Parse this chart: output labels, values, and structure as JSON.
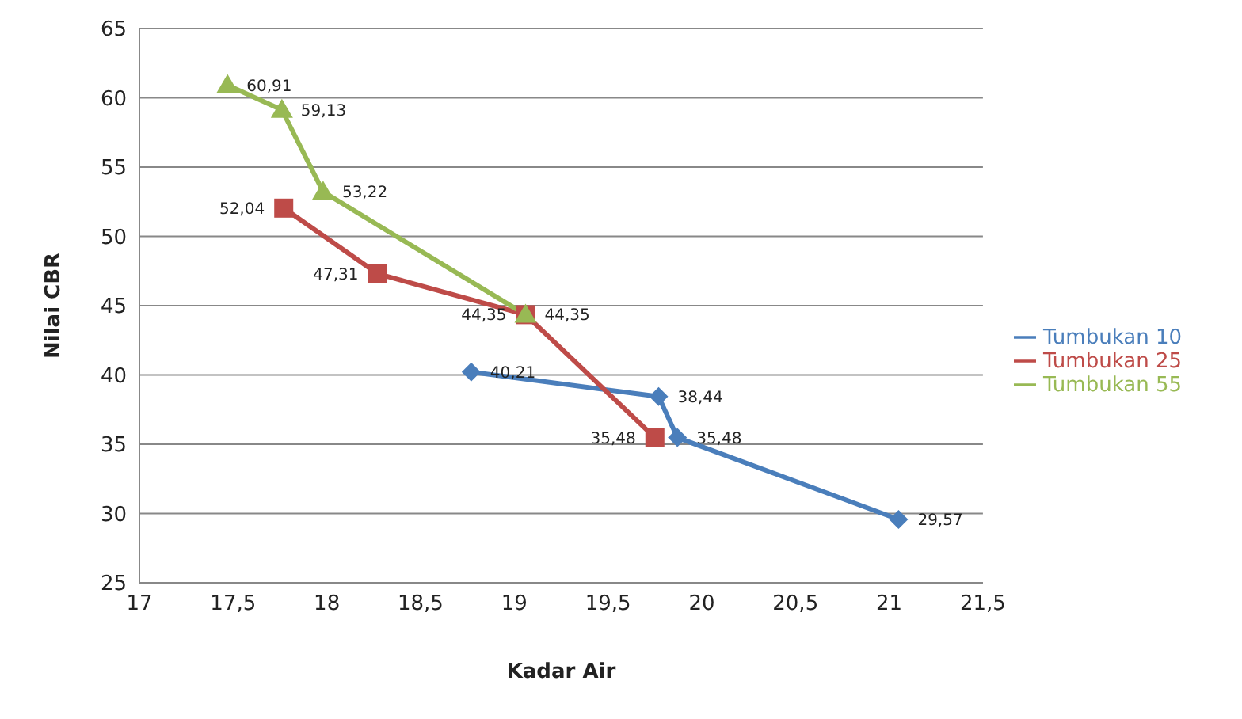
{
  "chart_data": {
    "type": "line",
    "xlabel": "Kadar Air",
    "ylabel": "Nilai CBR",
    "xlim": [
      17,
      21.5
    ],
    "xticks": [
      17,
      {
        "value": 17.5,
        "label": "17,5"
      },
      18,
      {
        "value": 18.5,
        "label": "18,5"
      },
      19,
      {
        "value": 19.5,
        "label": "19,5"
      },
      20,
      {
        "value": 20.5,
        "label": "20,5"
      },
      21,
      {
        "value": 21.5,
        "label": "21,5"
      }
    ],
    "ylim": [
      25,
      65
    ],
    "yticks": [
      25,
      30,
      35,
      40,
      45,
      50,
      55,
      60,
      65
    ],
    "grid": "y",
    "legend": "right",
    "series": [
      {
        "name": "Tumbukan 10",
        "color": "#4a7ebb",
        "marker": "diamond",
        "x": [
          18.77,
          19.77,
          19.87,
          21.05
        ],
        "values": [
          40.21,
          38.44,
          35.48,
          29.57
        ],
        "value_labels": [
          "40,21",
          "38,44",
          "35,48",
          "29,57"
        ]
      },
      {
        "name": "Tumbukan 25",
        "color": "#be4b48",
        "marker": "square",
        "x": [
          17.77,
          18.27,
          19.06,
          19.75
        ],
        "values": [
          52.04,
          47.31,
          44.35,
          35.48
        ],
        "value_labels": [
          "52,04",
          "47,31",
          "44,35",
          "35,48"
        ]
      },
      {
        "name": "Tumbukan 55",
        "color": "#98b954",
        "marker": "triangle",
        "x": [
          17.47,
          17.76,
          17.98,
          19.06
        ],
        "values": [
          60.91,
          59.13,
          53.22,
          44.35
        ],
        "value_labels": [
          "60,91",
          "59,13",
          "53,22",
          "44,35"
        ]
      }
    ]
  }
}
